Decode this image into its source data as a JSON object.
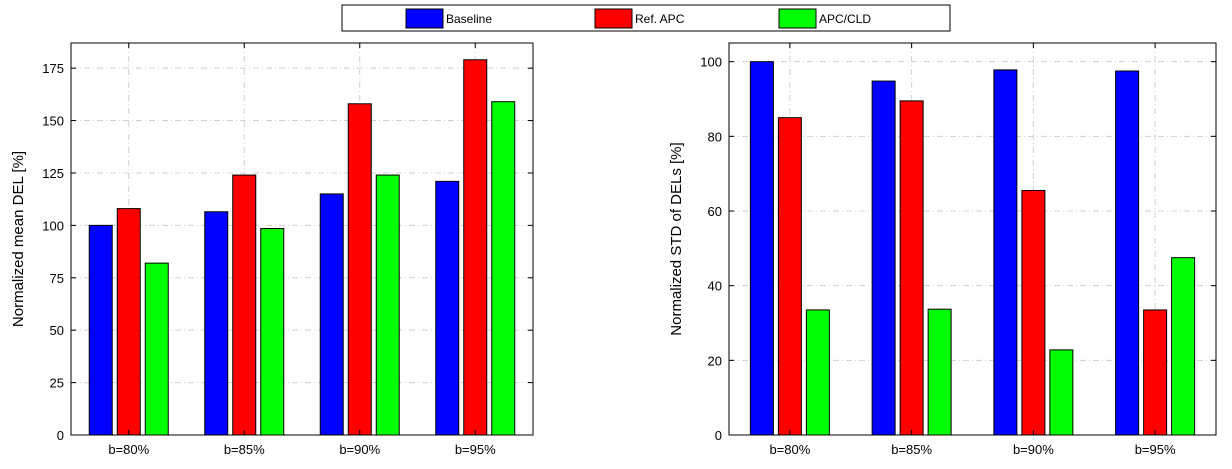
{
  "legend": {
    "items": [
      {
        "label": "Baseline",
        "color": "#0000ff"
      },
      {
        "label": "Ref. APC",
        "color": "#ff0000"
      },
      {
        "label": "APC/CLD",
        "color": "#00ff00"
      }
    ]
  },
  "chart_data": [
    {
      "type": "bar",
      "ylabel": "Normalized mean DEL [%]",
      "xlabel": "",
      "categories": [
        "b=80%",
        "b=85%",
        "b=90%",
        "b=95%"
      ],
      "ylim": [
        0,
        187
      ],
      "yticks": [
        0,
        25,
        50,
        75,
        100,
        125,
        150,
        175
      ],
      "grid": true,
      "series": [
        {
          "name": "Baseline",
          "color": "#0000ff",
          "values": [
            100,
            106.5,
            115,
            121
          ]
        },
        {
          "name": "Ref. APC",
          "color": "#ff0000",
          "values": [
            108,
            124,
            158,
            179
          ]
        },
        {
          "name": "APC/CLD",
          "color": "#00ff00",
          "values": [
            82,
            98.5,
            124,
            159
          ]
        }
      ]
    },
    {
      "type": "bar",
      "ylabel": "Normalized STD of DELs [%]",
      "xlabel": "",
      "categories": [
        "b=80%",
        "b=85%",
        "b=90%",
        "b=95%"
      ],
      "ylim": [
        0,
        105
      ],
      "yticks": [
        0,
        20,
        40,
        60,
        80,
        100
      ],
      "grid": true,
      "series": [
        {
          "name": "Baseline",
          "color": "#0000ff",
          "values": [
            100,
            94.8,
            97.8,
            97.5
          ]
        },
        {
          "name": "Ref. APC",
          "color": "#ff0000",
          "values": [
            85,
            89.5,
            65.5,
            33.5
          ]
        },
        {
          "name": "APC/CLD",
          "color": "#00ff00",
          "values": [
            33.5,
            33.7,
            22.8,
            47.5
          ]
        }
      ]
    }
  ]
}
